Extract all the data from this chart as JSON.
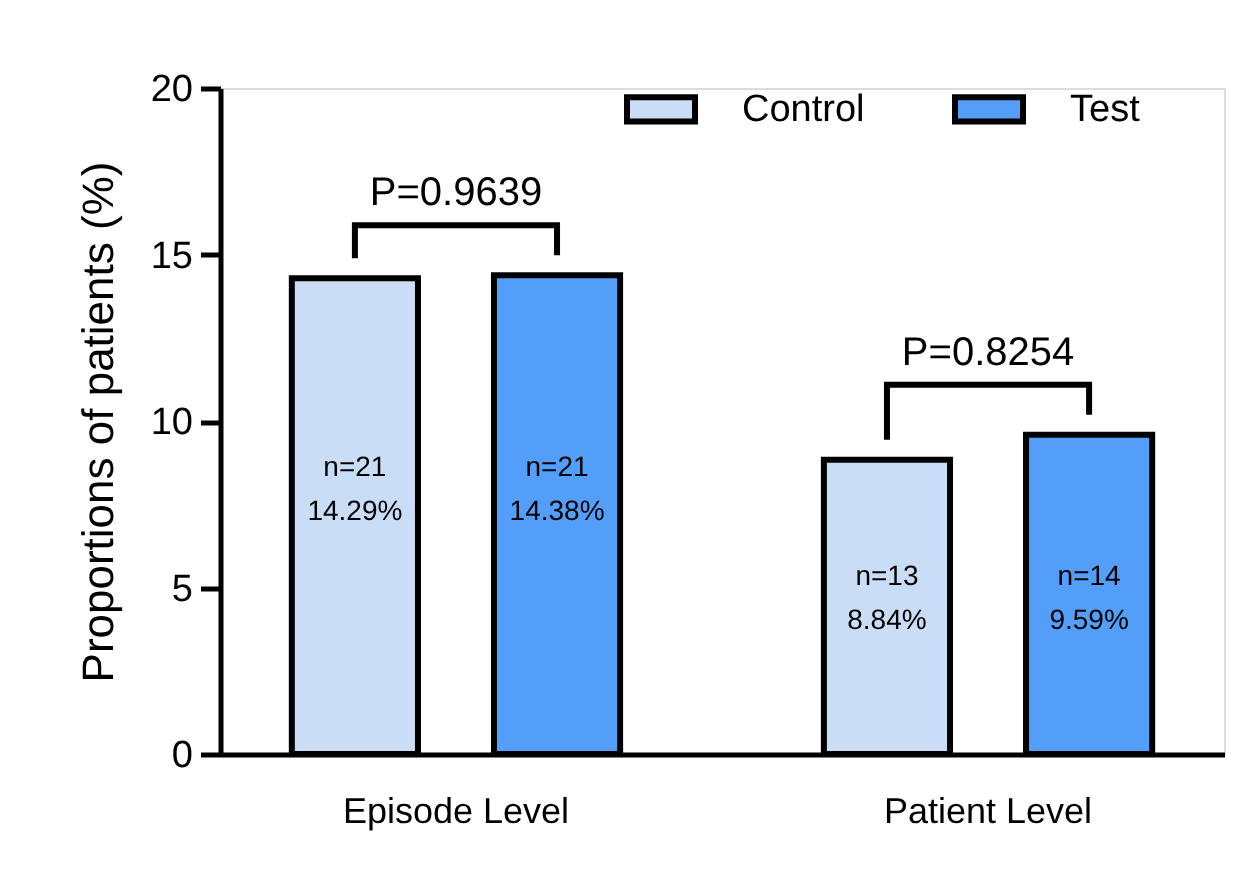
{
  "chart_data": {
    "type": "bar",
    "ylabel": "Proportions of patients (%)",
    "categories": [
      "Episode Level",
      "Patient Level"
    ],
    "series": [
      {
        "name": "Control",
        "color": "#c9ddf7",
        "values": [
          14.29,
          8.84
        ],
        "value_labels": [
          "n=21\n14.29%",
          "n=13\n8.84%"
        ]
      },
      {
        "name": "Test",
        "color": "#529ef8",
        "values": [
          14.38,
          9.59
        ],
        "value_labels": [
          "n=21\n14.38%",
          "n=14\n9.59%"
        ]
      }
    ],
    "ylim": [
      0,
      20
    ],
    "yticks": [
      0,
      5,
      10,
      15,
      20
    ],
    "grid": false,
    "legend": "top right",
    "annotations": [
      "P=0.9639",
      "P=0.8254"
    ]
  }
}
